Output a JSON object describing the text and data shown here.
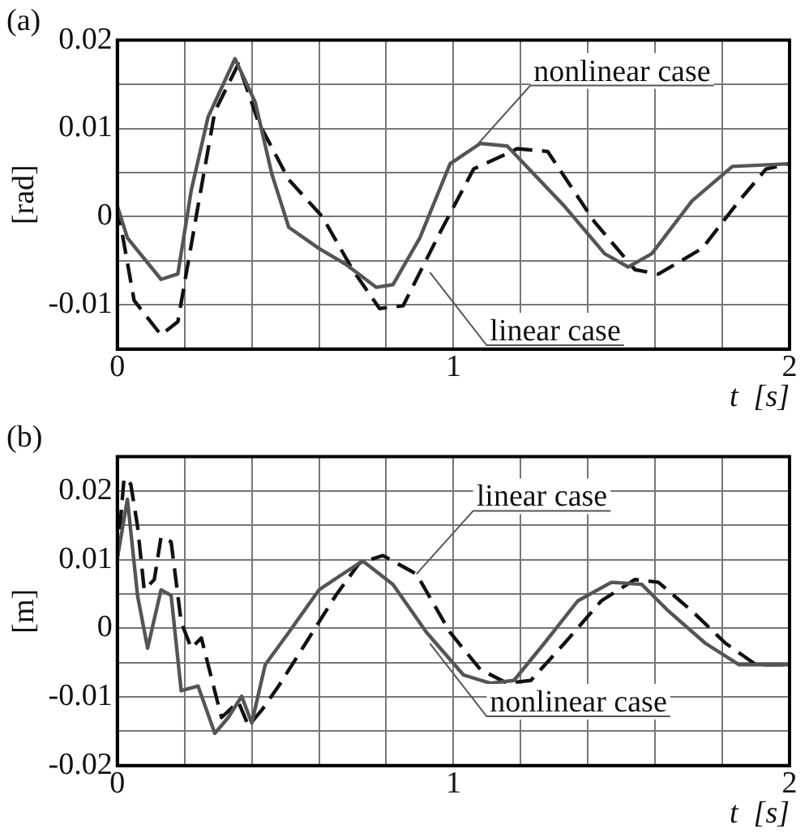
{
  "chart_data": [
    {
      "type": "line",
      "title": "(a)",
      "xlabel": "t  [s]",
      "ylabel": "[rad]",
      "xlim": [
        0,
        2
      ],
      "ylim": [
        -0.015,
        0.02
      ],
      "xticks": [
        0,
        {
          "value": 0.2,
          "label": null
        },
        {
          "value": 0.4,
          "label": null
        },
        {
          "value": 0.6,
          "label": null
        },
        {
          "value": 0.8,
          "label": null
        },
        1,
        {
          "value": 1.2,
          "label": null
        },
        {
          "value": 1.4,
          "label": null
        },
        {
          "value": 1.6,
          "label": null
        },
        {
          "value": 1.8,
          "label": null
        },
        2
      ],
      "yticks": [
        {
          "value": -0.015,
          "label": null
        },
        -0.01,
        {
          "value": -0.005,
          "label": null
        },
        0,
        {
          "value": 0.005,
          "label": null
        },
        0.01,
        {
          "value": 0.015,
          "label": null
        },
        0.02
      ],
      "grid": true,
      "legend": false,
      "marker": "none",
      "series": [
        {
          "color": "#555555",
          "line_style": "solid",
          "x": [
            0,
            0.03,
            0.13,
            0.18,
            0.22,
            0.27,
            0.35,
            0.41,
            0.46,
            0.51,
            0.6,
            0.68,
            0.77,
            0.82,
            0.9,
            0.99,
            1.08,
            1.16,
            1.33,
            1.45,
            1.52,
            1.59,
            1.71,
            1.83,
            2.0
          ],
          "values": [
            0.0012,
            -0.0024,
            -0.0071,
            -0.0065,
            0.003,
            0.0113,
            0.0179,
            0.013,
            0.0048,
            -0.0012,
            -0.0036,
            -0.0054,
            -0.008,
            -0.0077,
            -0.0024,
            0.006,
            0.0083,
            0.008,
            0.0012,
            -0.0042,
            -0.0057,
            -0.0042,
            0.0018,
            0.0057,
            0.006
          ]
        },
        {
          "color": "#111111",
          "line_style": "dashed",
          "x": [
            0,
            0.05,
            0.13,
            0.18,
            0.24,
            0.29,
            0.36,
            0.42,
            0.51,
            0.61,
            0.7,
            0.78,
            0.85,
            0.96,
            1.06,
            1.19,
            1.28,
            1.42,
            1.54,
            1.61,
            1.74,
            1.85,
            1.93,
            2.0
          ],
          "values": [
            0.0012,
            -0.0095,
            -0.0134,
            -0.0119,
            0.0012,
            0.0119,
            0.0173,
            0.0107,
            0.0042,
            0,
            -0.006,
            -0.0104,
            -0.0101,
            -0.0018,
            0.0054,
            0.0077,
            0.0074,
            -0.0006,
            -0.006,
            -0.0065,
            -0.0036,
            0.0018,
            0.0054,
            0.006
          ]
        }
      ],
      "annotations": [
        {
          "text": "nonlinear case",
          "x": 1.06,
          "y": 0.0077
        },
        {
          "text": "linear case",
          "x": 0.93,
          "y": -0.0063
        }
      ]
    },
    {
      "type": "line",
      "title": "(b)",
      "xlabel": "t  [s]",
      "ylabel": "[m]",
      "xlim": [
        0,
        2
      ],
      "ylim": [
        -0.02,
        0.025
      ],
      "xticks": [
        0,
        {
          "value": 0.2,
          "label": null
        },
        {
          "value": 0.4,
          "label": null
        },
        {
          "value": 0.6,
          "label": null
        },
        {
          "value": 0.8,
          "label": null
        },
        1,
        {
          "value": 1.2,
          "label": null
        },
        {
          "value": 1.4,
          "label": null
        },
        {
          "value": 1.6,
          "label": null
        },
        {
          "value": 1.8,
          "label": null
        },
        2
      ],
      "yticks": [
        -0.02,
        {
          "value": -0.015,
          "label": null
        },
        -0.01,
        {
          "value": -0.005,
          "label": null
        },
        0,
        {
          "value": 0.005,
          "label": null
        },
        0.01,
        {
          "value": 0.015,
          "label": null
        },
        0.02,
        {
          "value": 0.025,
          "label": null
        }
      ],
      "grid": true,
      "legend": false,
      "marker": "none",
      "series": [
        {
          "color": "#555555",
          "line_style": "solid",
          "x": [
            0,
            0.03,
            0.06,
            0.09,
            0.13,
            0.16,
            0.19,
            0.24,
            0.29,
            0.33,
            0.37,
            0.4,
            0.44,
            0.51,
            0.6,
            0.67,
            0.73,
            0.82,
            0.92,
            1.03,
            1.11,
            1.18,
            1.27,
            1.37,
            1.47,
            1.56,
            1.64,
            1.75,
            1.85,
            2.0
          ],
          "values": [
            0.0102,
            0.0188,
            0.0048,
            -0.0029,
            0.0056,
            0.0048,
            -0.0091,
            -0.0084,
            -0.0153,
            -0.013,
            -0.0099,
            -0.0138,
            -0.0053,
            -0.0006,
            0.0056,
            0.0079,
            0.0098,
            0.0064,
            -0.0006,
            -0.0068,
            -0.008,
            -0.0076,
            -0.0022,
            0.004,
            0.0067,
            0.0064,
            0.0025,
            -0.0022,
            -0.0053,
            -0.0053
          ]
        },
        {
          "color": "#111111",
          "line_style": "dashed",
          "x": [
            0,
            0.02,
            0.04,
            0.06,
            0.08,
            0.11,
            0.13,
            0.16,
            0.19,
            0.22,
            0.25,
            0.27,
            0.31,
            0.36,
            0.39,
            0.43,
            0.48,
            0.56,
            0.65,
            0.72,
            0.79,
            0.89,
            0.99,
            1.08,
            1.16,
            1.23,
            1.33,
            1.44,
            1.54,
            1.61,
            1.71,
            1.81,
            1.9,
            2.0
          ],
          "values": [
            0.0102,
            0.0219,
            0.021,
            0.0149,
            0.0056,
            0.0071,
            0.0133,
            0.0126,
            0.0009,
            -0.0029,
            -0.0014,
            -0.0053,
            -0.013,
            -0.0107,
            -0.0142,
            -0.0119,
            -0.0084,
            -0.0022,
            0.0048,
            0.0095,
            0.0106,
            0.0079,
            -0.0006,
            -0.006,
            -0.008,
            -0.0076,
            -0.0022,
            0.004,
            0.0071,
            0.0067,
            0.0025,
            -0.0022,
            -0.0053,
            -0.0053
          ]
        }
      ],
      "annotations": [
        {
          "text": "linear case",
          "x": 0.89,
          "y": 0.0079
        },
        {
          "text": "nonlinear case",
          "x": 0.93,
          "y": -0.0022
        }
      ]
    }
  ]
}
